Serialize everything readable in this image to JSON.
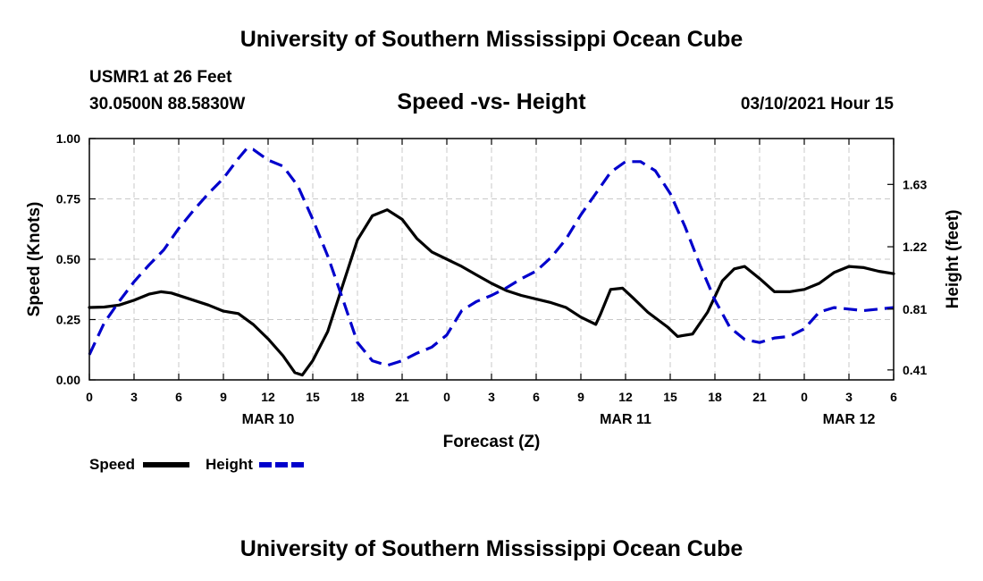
{
  "page": {
    "title_top": "University of Southern Mississippi Ocean Cube",
    "title_bottom": "University of Southern Mississippi Ocean Cube",
    "station": "USMR1 at 26 Feet",
    "coords": "30.0500N 88.5830W",
    "subtitle": "Speed -vs- Height",
    "datetime": "03/10/2021 Hour 15"
  },
  "colors": {
    "speed": "#000000",
    "height": "#0000cc",
    "grid": "#c8c8c8"
  },
  "chart_data": {
    "type": "line",
    "xlabel": "Forecast (Z)",
    "ylabel_left": "Speed (Knots)",
    "ylabel_right": "Height (feet)",
    "x_range_hours": [
      0,
      54
    ],
    "y_left_range": [
      0,
      1
    ],
    "y_right_range": [
      0.3445,
      1.9316
    ],
    "grid": true,
    "x_ticks": [
      {
        "h": 0,
        "label": "0"
      },
      {
        "h": 3,
        "label": "3"
      },
      {
        "h": 6,
        "label": "6"
      },
      {
        "h": 9,
        "label": "9"
      },
      {
        "h": 12,
        "label": "12"
      },
      {
        "h": 15,
        "label": "15"
      },
      {
        "h": 18,
        "label": "18"
      },
      {
        "h": 21,
        "label": "21"
      },
      {
        "h": 24,
        "label": "0"
      },
      {
        "h": 27,
        "label": "3"
      },
      {
        "h": 30,
        "label": "6"
      },
      {
        "h": 33,
        "label": "9"
      },
      {
        "h": 36,
        "label": "12"
      },
      {
        "h": 39,
        "label": "15"
      },
      {
        "h": 42,
        "label": "18"
      },
      {
        "h": 45,
        "label": "21"
      },
      {
        "h": 48,
        "label": "0"
      },
      {
        "h": 51,
        "label": "3"
      },
      {
        "h": 54,
        "label": "6"
      }
    ],
    "date_labels": [
      {
        "h": 12,
        "label": "MAR 10"
      },
      {
        "h": 36,
        "label": "MAR 11"
      },
      {
        "h": 51,
        "label": "MAR 12"
      }
    ],
    "y_left_ticks": [
      {
        "v": 0,
        "label": "0.00"
      },
      {
        "v": 0.25,
        "label": "0.25"
      },
      {
        "v": 0.5,
        "label": "0.50"
      },
      {
        "v": 0.75,
        "label": "0.75"
      },
      {
        "v": 1,
        "label": "1.00"
      }
    ],
    "y_right_ticks": [
      {
        "v": 0.41,
        "label": "0.41"
      },
      {
        "v": 0.81,
        "label": "0.81"
      },
      {
        "v": 1.22,
        "label": "1.22"
      },
      {
        "v": 1.63,
        "label": "1.63"
      }
    ],
    "series": [
      {
        "name": "Speed",
        "axis": "left",
        "style": "solid",
        "x": [
          0,
          1,
          2,
          3,
          4,
          4.8,
          5.5,
          6.5,
          8,
          9,
          10,
          11,
          12,
          13,
          13.8,
          14.3,
          15,
          16,
          17,
          18,
          19,
          20,
          21,
          22,
          23,
          24,
          25,
          26,
          27,
          28,
          29,
          30,
          31,
          32,
          33,
          34,
          34.3,
          35,
          35.8,
          36.5,
          37.5,
          38.8,
          39.5,
          40.5,
          41.5,
          42.5,
          43.3,
          44,
          45,
          46,
          47,
          48,
          49,
          50,
          51,
          52,
          53,
          54
        ],
        "values": [
          0.3,
          0.302,
          0.31,
          0.33,
          0.355,
          0.365,
          0.36,
          0.34,
          0.31,
          0.285,
          0.275,
          0.23,
          0.17,
          0.1,
          0.03,
          0.02,
          0.08,
          0.2,
          0.39,
          0.58,
          0.68,
          0.705,
          0.665,
          0.585,
          0.53,
          0.5,
          0.47,
          0.435,
          0.4,
          0.37,
          0.35,
          0.335,
          0.32,
          0.3,
          0.26,
          0.23,
          0.27,
          0.375,
          0.38,
          0.34,
          0.28,
          0.22,
          0.18,
          0.19,
          0.28,
          0.41,
          0.46,
          0.47,
          0.42,
          0.365,
          0.365,
          0.375,
          0.4,
          0.445,
          0.47,
          0.465,
          0.45,
          0.44
        ]
      },
      {
        "name": "Height",
        "axis": "right",
        "style": "dashed",
        "x": [
          0,
          1,
          2,
          3,
          4,
          5,
          6,
          7,
          8,
          9,
          10,
          10.6,
          11,
          12,
          13,
          14,
          15,
          16,
          17,
          18,
          19,
          20,
          21,
          22,
          23,
          24,
          25,
          26,
          27,
          28,
          29,
          30,
          31,
          32,
          33,
          34,
          35,
          36,
          37,
          38,
          39,
          40,
          41,
          42,
          43,
          44,
          45,
          46,
          47,
          48,
          49,
          50,
          51,
          52,
          53,
          54
        ],
        "values": [
          0.51,
          0.72,
          0.86,
          0.99,
          1.1,
          1.2,
          1.34,
          1.46,
          1.57,
          1.67,
          1.8,
          1.87,
          1.86,
          1.79,
          1.75,
          1.62,
          1.4,
          1.16,
          0.88,
          0.59,
          0.47,
          0.44,
          0.47,
          0.52,
          0.56,
          0.64,
          0.8,
          0.86,
          0.9,
          0.95,
          1.01,
          1.06,
          1.15,
          1.27,
          1.43,
          1.57,
          1.71,
          1.78,
          1.78,
          1.72,
          1.57,
          1.35,
          1.1,
          0.87,
          0.69,
          0.61,
          0.59,
          0.62,
          0.63,
          0.68,
          0.79,
          0.82,
          0.81,
          0.8,
          0.81,
          0.82
        ]
      }
    ]
  }
}
